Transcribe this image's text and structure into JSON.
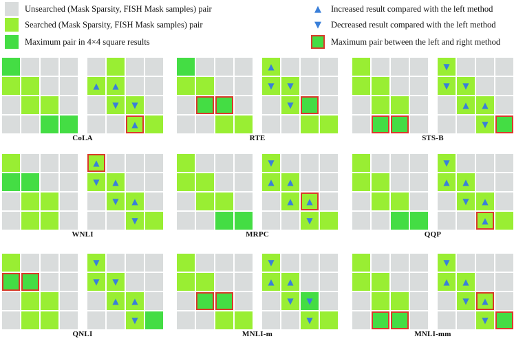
{
  "colors": {
    "unsearched": "#d9dcdc",
    "searched": "#99ee33",
    "maximum": "#44dd44",
    "arrow": "#3a7fd9",
    "highlight": "#d93a2b"
  },
  "legend": {
    "items": [
      {
        "type": "unsearched",
        "icon": "gray-square-icon",
        "label": "Unsearched (Mask Sparsity, FISH Mask samples) pair"
      },
      {
        "type": "searched",
        "icon": "light-green-square-icon",
        "label": "Searched (Mask Sparsity, FISH Mask samples) pair"
      },
      {
        "type": "maximum",
        "icon": "green-square-icon",
        "label": "Maximum pair in 4×4 square results"
      },
      {
        "type": "up",
        "icon": "up-triangle-icon",
        "glyph": "▲",
        "label": "Increased result compared with the left method"
      },
      {
        "type": "down",
        "icon": "down-triangle-icon",
        "glyph": "▼",
        "label": "Decreased result compared with the left method"
      },
      {
        "type": "boxed",
        "icon": "red-boxed-square-icon",
        "label": "Maximum pair between the left and right method"
      }
    ]
  },
  "cell_codes": "g = unsearched, s = searched, m = max in 4x4; suffix u = increased, d = decreased, x = red-boxed maximum",
  "panels": [
    {
      "title": "CoLA",
      "left": [
        "m g g g",
        "s s g g",
        "g s s g",
        "g g m m"
      ],
      "right": [
        "g s g g",
        "su su g g",
        "g sd sd g",
        "g g sux s"
      ]
    },
    {
      "title": "RTE",
      "left": [
        "m g g g",
        "s s g g",
        "g mx mx g",
        "g g s s"
      ],
      "right": [
        "su g g g",
        "sd sd g g",
        "g sd mx g",
        "g g s s"
      ]
    },
    {
      "title": "STS-B",
      "left": [
        "s g g g",
        "s s g g",
        "g s s g",
        "g mx mx g"
      ],
      "right": [
        "sd g g g",
        "sd sd g g",
        "g su su g",
        "g g sd mx"
      ]
    },
    {
      "title": "WNLI",
      "left": [
        "s g g g",
        "m m g g",
        "g s s g",
        "g s s g"
      ],
      "right": [
        "sux g g g",
        "sd su g g",
        "g sd su g",
        "g g sd s"
      ]
    },
    {
      "title": "MRPC",
      "left": [
        "s g g g",
        "s s g g",
        "g s s g",
        "g g m m"
      ],
      "right": [
        "sd g g g",
        "su su g g",
        "g su sux g",
        "g g sd s"
      ]
    },
    {
      "title": "QQP",
      "left": [
        "s g g g",
        "s s g g",
        "g s s g",
        "g g m m"
      ],
      "right": [
        "sd g g g",
        "su su g g",
        "g sd su g",
        "g g sux s"
      ]
    },
    {
      "title": "QNLI",
      "left": [
        "s g g g",
        "mx mx g g",
        "g s s g",
        "g s s g"
      ],
      "right": [
        "sd g g g",
        "sd sd g g",
        "g su su g",
        "g g sd m"
      ]
    },
    {
      "title": "MNLI-m",
      "left": [
        "s g g g",
        "s s g g",
        "g mx mx g",
        "g g s s"
      ],
      "right": [
        "sd g g g",
        "su su g g",
        "g sd md g",
        "g g sd s"
      ]
    },
    {
      "title": "MNLI-mm",
      "left": [
        "s g g g",
        "s s g g",
        "g s s g",
        "g mx mx g"
      ],
      "right": [
        "sd g g g",
        "su su g g",
        "g sd sux g",
        "g g sd mx"
      ]
    }
  ]
}
